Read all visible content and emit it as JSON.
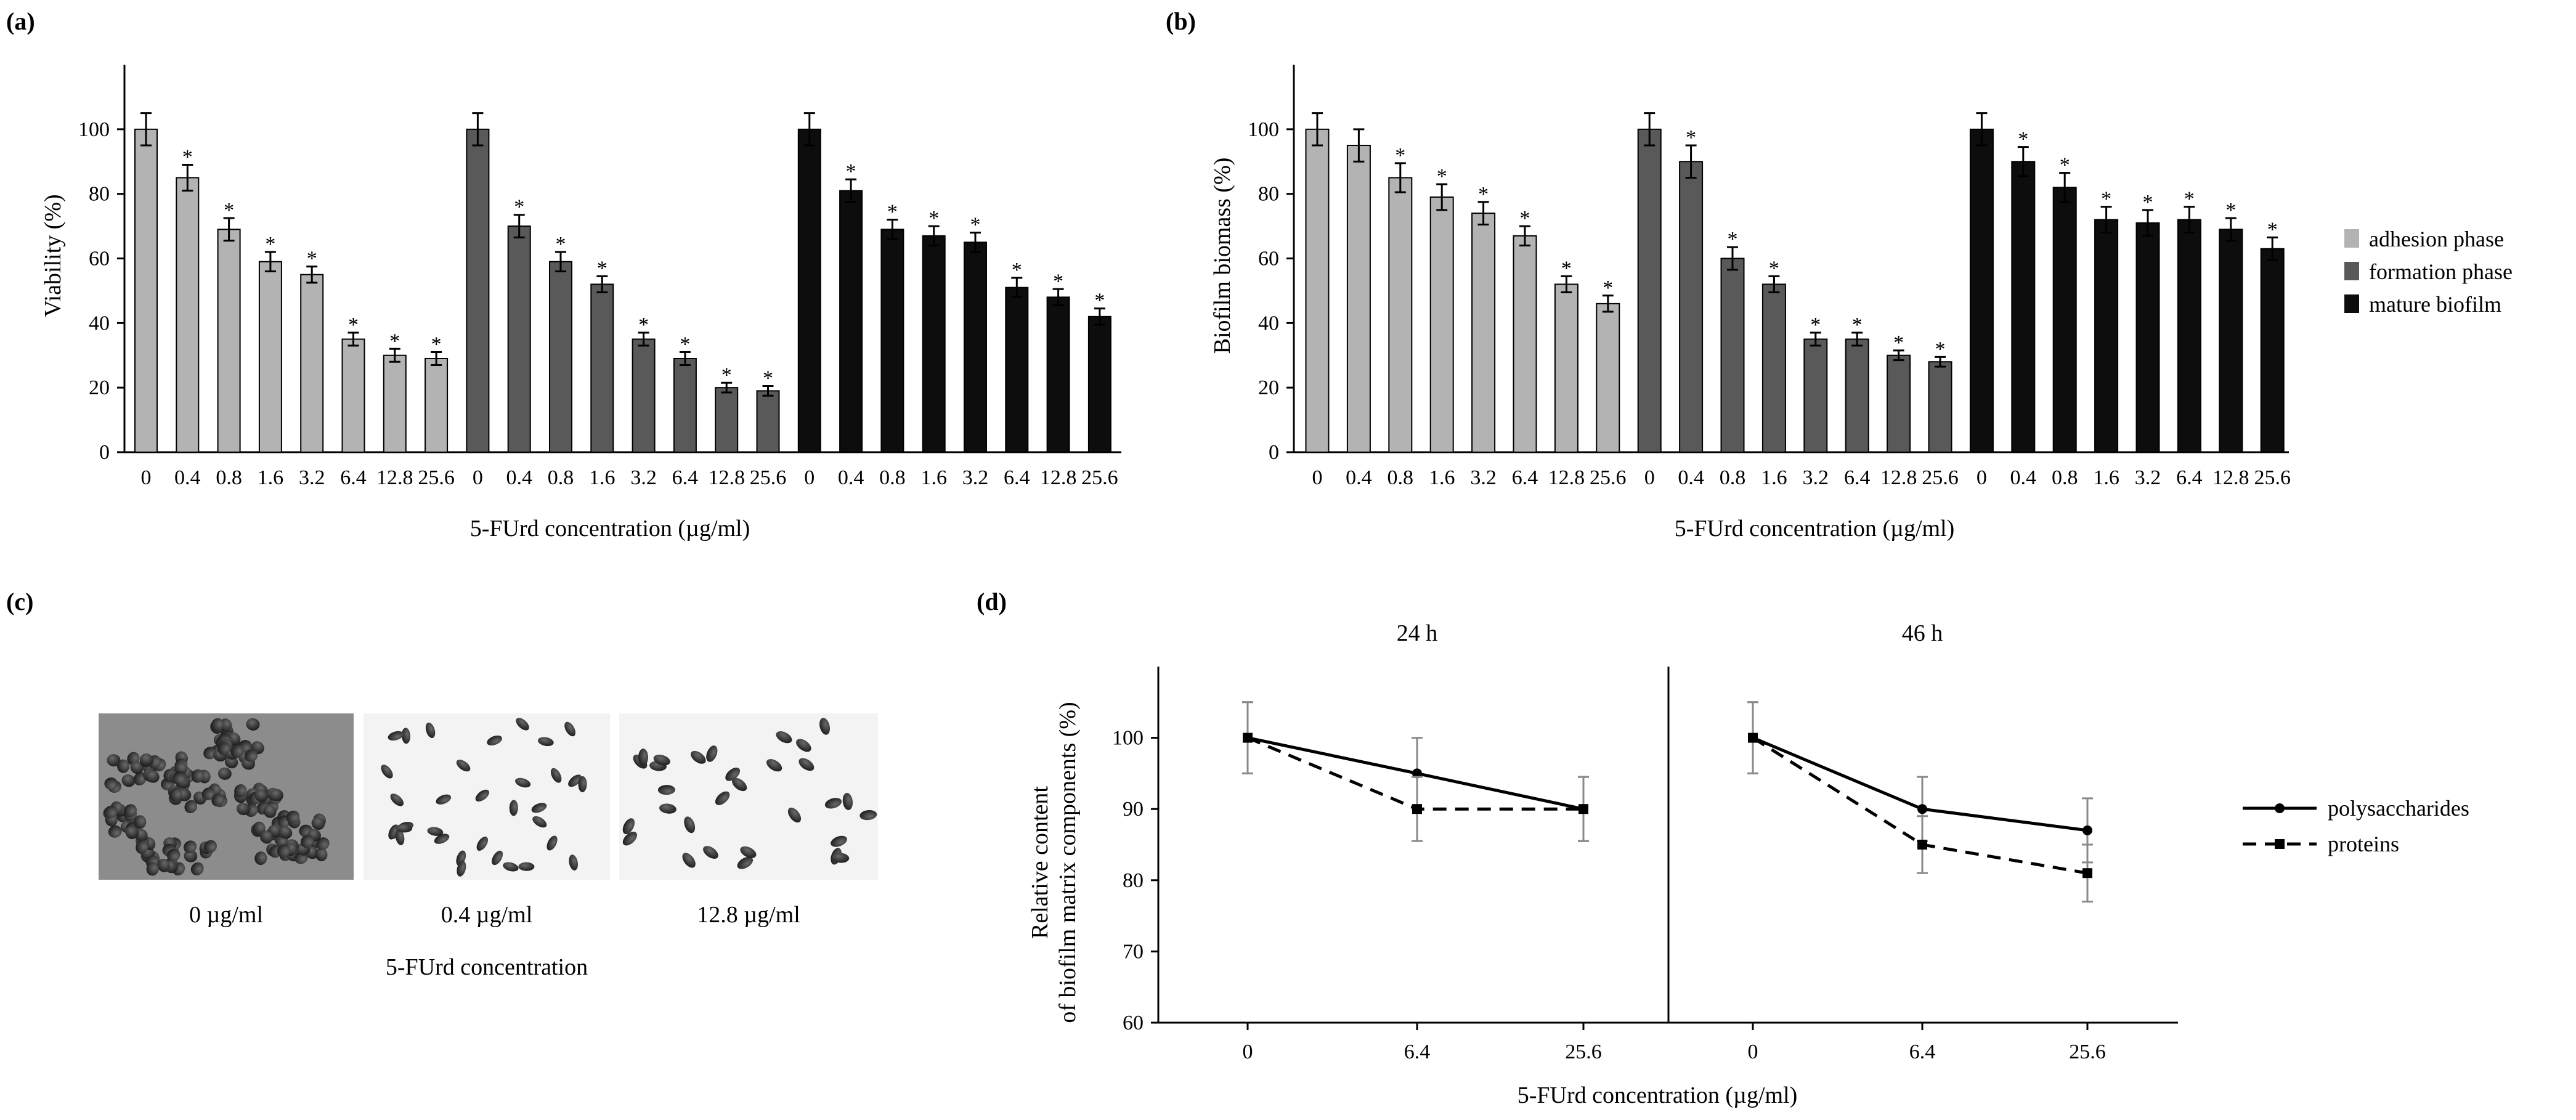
{
  "colors": {
    "adhesion": "#b3b3b3",
    "formation": "#595959",
    "mature": "#0d0d0d",
    "axis": "#000000",
    "error": "#000000"
  },
  "chart_data": [
    {
      "panel": "(a)",
      "type": "bar",
      "ylabel": "Viability (%)",
      "xlabel": "5-FUrd concentration (µg/ml)",
      "ylim": [
        0,
        120
      ],
      "yticks": [
        "0",
        "20",
        "40",
        "60",
        "80",
        "100"
      ],
      "categories": [
        "0",
        "0.4",
        "0.8",
        "1.6",
        "3.2",
        "6.4",
        "12.8",
        "25.6"
      ],
      "series": [
        {
          "name": "adhesion phase",
          "color_key": "adhesion",
          "values": [
            100,
            85,
            69,
            59,
            55,
            35,
            30,
            29
          ],
          "errors": [
            5,
            4,
            3.5,
            3,
            2.5,
            2,
            2,
            2
          ],
          "significant": [
            false,
            true,
            true,
            true,
            true,
            true,
            true,
            true
          ]
        },
        {
          "name": "formation phase",
          "color_key": "formation",
          "values": [
            100,
            70,
            59,
            52,
            35,
            29,
            20,
            19
          ],
          "errors": [
            5,
            3.5,
            3,
            2.5,
            2,
            2,
            1.5,
            1.5
          ],
          "significant": [
            false,
            true,
            true,
            true,
            true,
            true,
            true,
            true
          ]
        },
        {
          "name": "mature biofilm",
          "color_key": "mature",
          "values": [
            100,
            81,
            69,
            67,
            65,
            51,
            48,
            42
          ],
          "errors": [
            5,
            3.5,
            3,
            3,
            3,
            3,
            2.5,
            2.5
          ],
          "significant": [
            false,
            true,
            true,
            true,
            true,
            true,
            true,
            true
          ]
        }
      ]
    },
    {
      "panel": "(b)",
      "type": "bar",
      "ylabel": "Biofilm biomass (%)",
      "xlabel": "5-FUrd concentration (µg/ml)",
      "ylim": [
        0,
        120
      ],
      "yticks": [
        "0",
        "20",
        "40",
        "60",
        "80",
        "100"
      ],
      "categories": [
        "0",
        "0.4",
        "0.8",
        "1.6",
        "3.2",
        "6.4",
        "12.8",
        "25.6"
      ],
      "legend": [
        "adhesion phase",
        "formation phase",
        "mature biofilm"
      ],
      "series": [
        {
          "name": "adhesion phase",
          "color_key": "adhesion",
          "values": [
            100,
            95,
            85,
            79,
            74,
            67,
            52,
            46
          ],
          "errors": [
            5,
            5,
            4.5,
            4,
            3.5,
            3,
            2.5,
            2.5
          ],
          "significant": [
            false,
            false,
            true,
            true,
            true,
            true,
            true,
            true
          ]
        },
        {
          "name": "formation phase",
          "color_key": "formation",
          "values": [
            100,
            90,
            60,
            52,
            35,
            35,
            30,
            28
          ],
          "errors": [
            5,
            5,
            3.5,
            2.5,
            2,
            2,
            1.5,
            1.5
          ],
          "significant": [
            false,
            true,
            true,
            true,
            true,
            true,
            true,
            true
          ]
        },
        {
          "name": "mature biofilm",
          "color_key": "mature",
          "values": [
            100,
            90,
            82,
            72,
            71,
            72,
            69,
            63
          ],
          "errors": [
            5,
            4.5,
            4.5,
            4,
            4,
            4,
            3.5,
            3.5
          ],
          "significant": [
            false,
            true,
            true,
            true,
            true,
            true,
            true,
            true
          ]
        }
      ]
    },
    {
      "panel": "(d)",
      "type": "line",
      "ylabel_line1": "Relative content",
      "ylabel_line2": "of biofilm matrix components (%)",
      "xlabel": "5-FUrd concentration (µg/ml)",
      "ylim": [
        60,
        110
      ],
      "yticks": [
        "60",
        "70",
        "80",
        "90",
        "100"
      ],
      "facets": [
        {
          "title": "24 h",
          "x": [
            "0",
            "6.4",
            "25.6"
          ],
          "series": [
            {
              "name": "polysaccharides",
              "values": [
                100,
                95,
                90
              ],
              "errors": [
                5,
                5,
                4.5
              ]
            },
            {
              "name": "proteins",
              "values": [
                100,
                90,
                90
              ],
              "errors": [
                5,
                4.5,
                4.5
              ]
            }
          ]
        },
        {
          "title": "46 h",
          "x": [
            "0",
            "6.4",
            "25.6"
          ],
          "series": [
            {
              "name": "polysaccharides",
              "values": [
                100,
                90,
                87
              ],
              "errors": [
                5,
                4.5,
                4.5
              ]
            },
            {
              "name": "proteins",
              "values": [
                100,
                85,
                81
              ],
              "errors": [
                5,
                4,
                4
              ]
            }
          ]
        }
      ],
      "legend": [
        "polysaccharides",
        "proteins"
      ]
    }
  ],
  "micrographs": {
    "panel": "(c)",
    "labels": [
      "0 µg/ml",
      "0.4 µg/ml",
      "12.8 µg/ml"
    ],
    "caption": "5-FUrd concentration"
  }
}
